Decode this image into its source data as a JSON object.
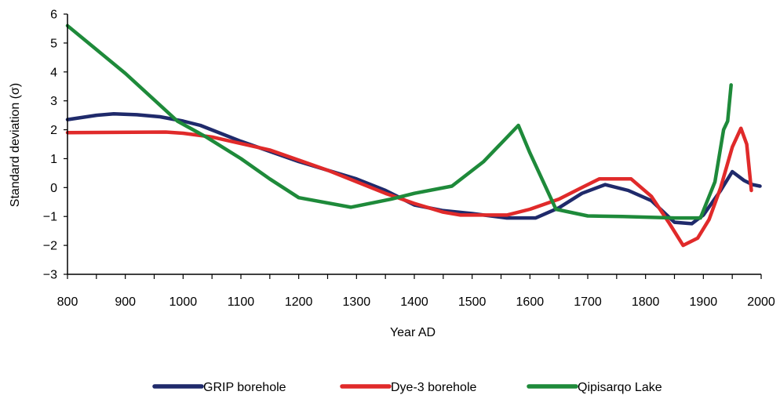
{
  "chart_data": {
    "type": "line",
    "xlabel": "Year AD",
    "ylabel": "Standard deviation (σ)",
    "xlim": [
      800,
      2000
    ],
    "ylim": [
      -3,
      6
    ],
    "x_ticks": [
      "800",
      "900",
      "1000",
      "1100",
      "1200",
      "1300",
      "1400",
      "1500",
      "1600",
      "1700",
      "1800",
      "1900",
      "2000"
    ],
    "y_ticks": [
      "6",
      "5",
      "4",
      "3",
      "2",
      "1",
      "0",
      "−1",
      "−2",
      "−3"
    ],
    "grid": false,
    "legend_position": "bottom",
    "series": [
      {
        "name": "GRIP borehole",
        "color": "#1f2a6b",
        "points": [
          [
            800,
            2.35
          ],
          [
            850,
            2.5
          ],
          [
            880,
            2.55
          ],
          [
            920,
            2.52
          ],
          [
            960,
            2.45
          ],
          [
            1000,
            2.3
          ],
          [
            1030,
            2.15
          ],
          [
            1100,
            1.6
          ],
          [
            1200,
            0.9
          ],
          [
            1300,
            0.3
          ],
          [
            1350,
            -0.1
          ],
          [
            1400,
            -0.6
          ],
          [
            1450,
            -0.8
          ],
          [
            1500,
            -0.9
          ],
          [
            1560,
            -1.05
          ],
          [
            1610,
            -1.05
          ],
          [
            1650,
            -0.7
          ],
          [
            1690,
            -0.2
          ],
          [
            1730,
            0.1
          ],
          [
            1770,
            -0.1
          ],
          [
            1810,
            -0.45
          ],
          [
            1850,
            -1.2
          ],
          [
            1880,
            -1.25
          ],
          [
            1900,
            -0.95
          ],
          [
            1930,
            -0.1
          ],
          [
            1950,
            0.55
          ],
          [
            1970,
            0.25
          ],
          [
            1985,
            0.1
          ],
          [
            1998,
            0.05
          ]
        ]
      },
      {
        "name": "Dye-3 borehole",
        "color": "#e02a2a",
        "points": [
          [
            800,
            1.9
          ],
          [
            970,
            1.92
          ],
          [
            1000,
            1.88
          ],
          [
            1050,
            1.75
          ],
          [
            1150,
            1.3
          ],
          [
            1250,
            0.6
          ],
          [
            1350,
            -0.2
          ],
          [
            1400,
            -0.55
          ],
          [
            1450,
            -0.85
          ],
          [
            1480,
            -0.95
          ],
          [
            1560,
            -0.95
          ],
          [
            1600,
            -0.75
          ],
          [
            1650,
            -0.4
          ],
          [
            1690,
            0.0
          ],
          [
            1720,
            0.3
          ],
          [
            1775,
            0.3
          ],
          [
            1810,
            -0.3
          ],
          [
            1840,
            -1.2
          ],
          [
            1865,
            -2.0
          ],
          [
            1890,
            -1.75
          ],
          [
            1910,
            -1.1
          ],
          [
            1930,
            0.0
          ],
          [
            1950,
            1.4
          ],
          [
            1965,
            2.05
          ],
          [
            1975,
            1.5
          ],
          [
            1983,
            -0.1
          ]
        ]
      },
      {
        "name": "Qipisarqo Lake",
        "color": "#1e8a3a",
        "points": [
          [
            800,
            5.6
          ],
          [
            900,
            3.95
          ],
          [
            990,
            2.3
          ],
          [
            1040,
            1.75
          ],
          [
            1100,
            1.0
          ],
          [
            1150,
            0.3
          ],
          [
            1200,
            -0.35
          ],
          [
            1290,
            -0.68
          ],
          [
            1360,
            -0.4
          ],
          [
            1400,
            -0.2
          ],
          [
            1465,
            0.05
          ],
          [
            1520,
            0.9
          ],
          [
            1580,
            2.15
          ],
          [
            1600,
            1.2
          ],
          [
            1645,
            -0.75
          ],
          [
            1700,
            -0.98
          ],
          [
            1760,
            -1.0
          ],
          [
            1850,
            -1.05
          ],
          [
            1895,
            -1.05
          ],
          [
            1920,
            0.2
          ],
          [
            1935,
            2.0
          ],
          [
            1942,
            2.3
          ],
          [
            1948,
            3.55
          ]
        ]
      }
    ]
  }
}
